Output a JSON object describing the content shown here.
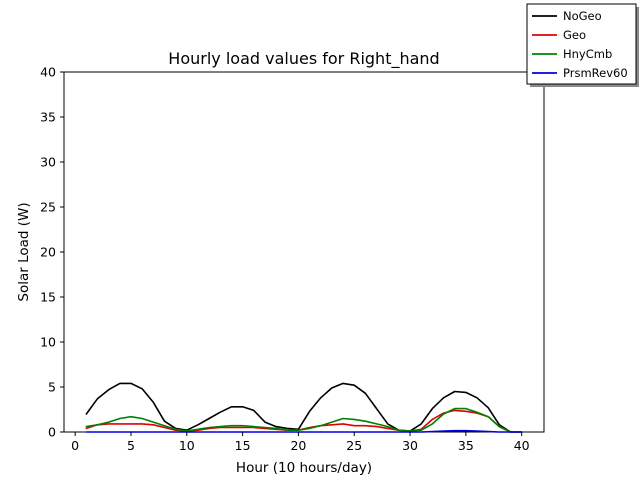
{
  "chart_data": {
    "type": "line",
    "title": "Hourly load values for Right_hand",
    "xlabel": "Hour (10 hours/day)",
    "ylabel": "Solar Load (W)",
    "xlim": [
      -1,
      42
    ],
    "ylim": [
      0,
      40
    ],
    "xticks": [
      0,
      5,
      10,
      15,
      20,
      25,
      30,
      35,
      40
    ],
    "yticks": [
      0,
      5,
      10,
      15,
      20,
      25,
      30,
      35,
      40
    ],
    "grid": false,
    "legend_position": "top-right",
    "x": [
      1,
      2,
      3,
      4,
      5,
      6,
      7,
      8,
      9,
      10,
      11,
      12,
      13,
      14,
      15,
      16,
      17,
      18,
      19,
      20,
      21,
      22,
      23,
      24,
      25,
      26,
      27,
      28,
      29,
      30,
      31,
      32,
      33,
      34,
      35,
      36,
      37,
      38,
      39,
      40
    ],
    "series": [
      {
        "name": "NoGeo",
        "color": "#000000",
        "values": [
          2.0,
          3.7,
          4.7,
          5.4,
          5.4,
          4.8,
          3.3,
          1.2,
          0.4,
          0.2,
          0.8,
          1.5,
          2.2,
          2.8,
          2.8,
          2.4,
          1.1,
          0.6,
          0.4,
          0.3,
          2.3,
          3.8,
          4.9,
          5.4,
          5.2,
          4.3,
          2.6,
          0.9,
          0.2,
          0.1,
          0.9,
          2.6,
          3.8,
          4.5,
          4.4,
          3.8,
          2.7,
          0.8,
          0.0,
          0.0
        ]
      },
      {
        "name": "Geo",
        "color": "#e00000",
        "values": [
          0.4,
          0.8,
          0.9,
          0.9,
          0.9,
          0.9,
          0.8,
          0.5,
          0.2,
          0.1,
          0.2,
          0.4,
          0.5,
          0.5,
          0.5,
          0.5,
          0.4,
          0.3,
          0.2,
          0.2,
          0.5,
          0.7,
          0.8,
          0.9,
          0.7,
          0.7,
          0.6,
          0.4,
          0.2,
          0.1,
          0.3,
          1.4,
          2.1,
          2.4,
          2.3,
          2.1,
          1.7,
          0.6,
          0.0,
          0.0
        ]
      },
      {
        "name": "HnyCmb",
        "color": "#008000",
        "values": [
          0.6,
          0.8,
          1.1,
          1.5,
          1.7,
          1.5,
          1.1,
          0.7,
          0.3,
          0.1,
          0.3,
          0.5,
          0.6,
          0.7,
          0.7,
          0.6,
          0.5,
          0.4,
          0.2,
          0.2,
          0.4,
          0.7,
          1.1,
          1.5,
          1.4,
          1.2,
          0.9,
          0.6,
          0.2,
          0.1,
          0.2,
          0.9,
          2.0,
          2.6,
          2.6,
          2.2,
          1.7,
          0.6,
          0.0,
          0.0
        ]
      },
      {
        "name": "PrsmRev60",
        "color": "#0000e0",
        "values": [
          0.0,
          0.0,
          0.0,
          0.0,
          0.0,
          0.0,
          0.0,
          0.0,
          0.0,
          0.0,
          0.0,
          0.0,
          0.0,
          0.0,
          0.0,
          0.0,
          0.0,
          0.0,
          0.0,
          0.0,
          0.0,
          0.0,
          0.0,
          0.0,
          0.0,
          0.0,
          0.0,
          0.0,
          0.0,
          0.0,
          0.0,
          0.05,
          0.1,
          0.15,
          0.15,
          0.1,
          0.05,
          0.0,
          0.0,
          0.0
        ]
      }
    ]
  }
}
